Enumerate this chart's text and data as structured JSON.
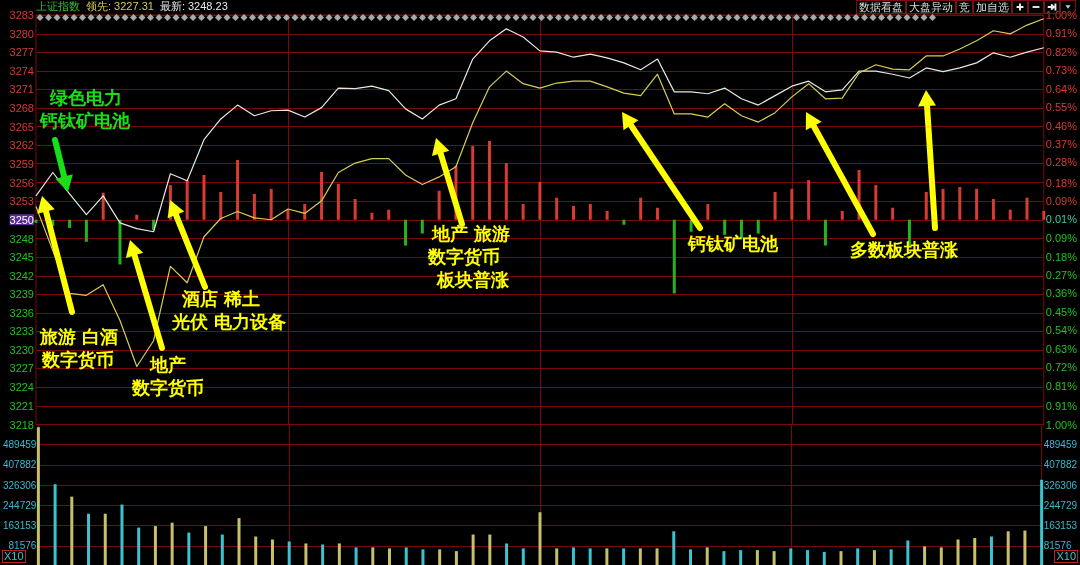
{
  "chart_data": [
    {
      "type": "line",
      "title": "上证指数",
      "categories": [
        null,
        null,
        null,
        null,
        null,
        null,
        null,
        null,
        null,
        null,
        null,
        null,
        null,
        null,
        null,
        null,
        null,
        null,
        null,
        null,
        null,
        null,
        null,
        null,
        null,
        null,
        null,
        null,
        null,
        null,
        null,
        null,
        null,
        null,
        null,
        null,
        null,
        null,
        null,
        null,
        null,
        null,
        null,
        null,
        null,
        null,
        null,
        null,
        null,
        null,
        null,
        null,
        null,
        null,
        null,
        null,
        null,
        null,
        null,
        null,
        null
      ],
      "series": [
        {
          "type": "line",
          "color": "#e6e6e6",
          "values": [
            3254.3,
            3258.0,
            3254.6,
            3251.3,
            3254.3,
            3250.0,
            3249.1,
            3248.6,
            3257.8,
            3256.7,
            3263.2,
            3266.5,
            3268.7,
            3267.0,
            3267.8,
            3267.9,
            3266.8,
            3268.3,
            3271.4,
            3271.3,
            3271.7,
            3271.0,
            3268.1,
            3266.5,
            3268.7,
            3269.7,
            3276.0,
            3278.9,
            3280.8,
            3279.5,
            3277.3,
            3277.1,
            3276.3,
            3276.8,
            3276.2,
            3275.4,
            3274.3,
            3276.0,
            3270.8,
            3270.8,
            3270.5,
            3271.4,
            3269.7,
            3268.7,
            3270.2,
            3271.7,
            3272.5,
            3270.8,
            3271.1,
            3274.1,
            3274.1,
            3273.6,
            3273.0,
            3274.6,
            3274.0,
            3274.6,
            3275.4,
            3277.0,
            3276.3,
            3277.1,
            3277.8
          ]
        },
        {
          "type": "line",
          "color": "#d6cc55",
          "values": [
            3252.6,
            3245.6,
            3238.8,
            3238.5,
            3240.2,
            3234.5,
            3227.2,
            3231.3,
            3243.1,
            3240.5,
            3247.8,
            3250.7,
            3251.8,
            3250.8,
            3250.5,
            3252.2,
            3251.5,
            3253.5,
            3258.0,
            3259.5,
            3260.2,
            3260.2,
            3257.6,
            3256.1,
            3257.3,
            3258.9,
            3265.9,
            3271.6,
            3274.1,
            3272.1,
            3271.4,
            3272.2,
            3272.5,
            3272.5,
            3271.6,
            3270.6,
            3270.2,
            3273.6,
            3267.3,
            3267.3,
            3266.8,
            3268.9,
            3267.0,
            3266.0,
            3267.5,
            3270.0,
            3272.1,
            3269.7,
            3269.8,
            3273.8,
            3275.1,
            3274.4,
            3274.3,
            3276.5,
            3276.5,
            3277.6,
            3278.9,
            3280.5,
            3280.0,
            3281.4,
            3282.4
          ]
        },
        {
          "type": "bar",
          "values": [
            -0.5,
            -1.0,
            -1.3,
            -3.5,
            4.3,
            -7.1,
            0.8,
            -1.6,
            5.5,
            6.3,
            7.1,
            4.4,
            9.5,
            4.1,
            4.9,
            1.6,
            2.5,
            7.6,
            5.7,
            3.3,
            1.1,
            1.6,
            -4.1,
            -2.2,
            4.6,
            8.6,
            11.7,
            12.5,
            9.0,
            2.5,
            6.0,
            3.5,
            2.2,
            2.5,
            1.4,
            -0.8,
            3.5,
            1.9,
            -11.7,
            -1.9,
            2.5,
            -2.4,
            -2.9,
            -2.2,
            4.4,
            4.9,
            6.3,
            -4.1,
            1.4,
            7.9,
            5.5,
            1.9,
            -4.1,
            4.4,
            4.9,
            5.2,
            4.9,
            3.3,
            1.6,
            3.5,
            1.4
          ],
          "base": [
            3250.5,
            3250.5,
            3250.5,
            3250.5,
            3250.5,
            3250.5,
            3250.5,
            3250.5,
            3250.5,
            3250.5,
            3250.5,
            3250.5,
            3250.5,
            3250.5,
            3250.5,
            3250.5,
            3250.5,
            3250.5,
            3250.5,
            3250.5,
            3250.5,
            3250.5,
            3250.5,
            3250.5,
            3250.5,
            3250.5,
            3250.5,
            3250.5,
            3250.5,
            3250.5,
            3250.5,
            3250.5,
            3250.5,
            3250.5,
            3250.5,
            3250.5,
            3250.5,
            3250.5,
            3250.5,
            3250.5,
            3250.5,
            3250.5,
            3250.5,
            3250.5,
            3250.5,
            3250.5,
            3250.5,
            3250.5,
            3250.5,
            3250.5,
            3250.5,
            3250.5,
            3250.5,
            3250.5,
            3250.5,
            3250.5,
            3250.5,
            3250.5,
            3250.5,
            3250.5,
            3250.5
          ],
          "colors": [
            "#22b322",
            "#22b322",
            "#22b322",
            "#22b322",
            "#d83a34",
            "#22b322",
            "#d83a34",
            "#22b322",
            "#d83a34",
            "#d83a34",
            "#d83a34",
            "#d83a34",
            "#d83a34",
            "#d83a34",
            "#d83a34",
            "#d83a34",
            "#d83a34",
            "#d83a34",
            "#d83a34",
            "#d83a34",
            "#d83a34",
            "#d83a34",
            "#22b322",
            "#22b322",
            "#d83a34",
            "#d83a34",
            "#d83a34",
            "#d83a34",
            "#d83a34",
            "#d83a34",
            "#d83a34",
            "#d83a34",
            "#d83a34",
            "#d83a34",
            "#d83a34",
            "#22b322",
            "#d83a34",
            "#d83a34",
            "#22b322",
            "#22b322",
            "#d83a34",
            "#22b322",
            "#22b322",
            "#22b322",
            "#d83a34",
            "#d83a34",
            "#d83a34",
            "#22b322",
            "#d83a34",
            "#d83a34",
            "#d83a34",
            "#d83a34",
            "#22b322",
            "#d83a34",
            "#d83a34",
            "#d83a34",
            "#d83a34",
            "#d83a34",
            "#d83a34",
            "#d83a34",
            "#d83a34"
          ]
        }
      ],
      "ylim": [
        3218,
        3283
      ],
      "yticks": [
        3218,
        {
          "value": 3220.9,
          "label": "3221"
        },
        {
          "value": 3223.9,
          "label": "3224"
        },
        {
          "value": 3226.9,
          "label": "3227"
        },
        {
          "value": 3229.8,
          "label": "3230"
        },
        {
          "value": 3232.8,
          "label": "3233"
        },
        {
          "value": 3235.7,
          "label": "3236"
        },
        {
          "value": 3238.7,
          "label": "3239"
        },
        {
          "value": 3241.6,
          "label": "3242"
        },
        {
          "value": 3244.6,
          "label": "3245"
        },
        {
          "value": 3247.5,
          "label": "3248"
        },
        {
          "value": 3250.5,
          "label": "3250"
        },
        {
          "value": 3253.5,
          "label": "3253"
        },
        {
          "value": 3256.4,
          "label": "3256"
        },
        {
          "value": 3259.4,
          "label": "3259"
        },
        {
          "value": 3262.3,
          "label": "3262"
        },
        {
          "value": 3265.3,
          "label": "3265"
        },
        {
          "value": 3268.2,
          "label": "3268"
        },
        {
          "value": 3271.2,
          "label": "3271"
        },
        {
          "value": 3274.1,
          "label": "3274"
        },
        {
          "value": 3277.1,
          "label": "3277"
        },
        3280,
        3283
      ],
      "y2lim": [
        -1,
        1
      ],
      "y2ticks": [
        {
          "value": -1,
          "label": "1.00%"
        },
        {
          "value": -0.91,
          "label": "0.91%"
        },
        {
          "value": -0.81,
          "label": "0.81%"
        },
        {
          "value": -0.72,
          "label": "0.72%"
        },
        {
          "value": -0.63,
          "label": "0.63%"
        },
        {
          "value": -0.54,
          "label": "0.54%"
        },
        {
          "value": -0.45,
          "label": "0.45%"
        },
        {
          "value": -0.36,
          "label": "0.36%"
        },
        {
          "value": -0.27,
          "label": "0.27%"
        },
        {
          "value": -0.18,
          "label": "0.18%"
        },
        {
          "value": -0.09,
          "label": "0.09%"
        },
        {
          "value": 0.005,
          "label": "0.01%"
        },
        {
          "value": 0.09,
          "label": "0.09%"
        },
        {
          "value": 0.18,
          "label": "0.18%"
        },
        {
          "value": 0.28,
          "label": "0.28%"
        },
        {
          "value": 0.37,
          "label": "0.37%"
        },
        {
          "value": 0.46,
          "label": "0.46%"
        },
        {
          "value": 0.55,
          "label": "0.55%"
        },
        {
          "value": 0.64,
          "label": "0.64%"
        },
        {
          "value": 0.73,
          "label": "0.73%"
        },
        {
          "value": 0.82,
          "label": "0.82%"
        },
        {
          "value": 0.91,
          "label": "0.91%"
        },
        {
          "value": 1,
          "label": "1.00%"
        }
      ],
      "grid": true,
      "annotations": [
        "领先: 3227.31",
        "最新: 3248.23",
        "数据看盘",
        "大盘异动",
        "竞",
        "加自选",
        "绿色电力",
        "钙钛矿电池",
        "旅游 白酒",
        "数字货币",
        "地产",
        "数字货币",
        "酒店 稀土",
        "光伏 电力设备",
        "地产 旅游",
        "数字货币",
        "板块普涨",
        "钙钛矿电池",
        "多数板块普涨"
      ]
    },
    {
      "type": "bar",
      "categories": [
        null,
        null,
        null,
        null,
        null,
        null,
        null,
        null,
        null,
        null,
        null,
        null,
        null,
        null,
        null,
        null,
        null,
        null,
        null,
        null,
        null,
        null,
        null,
        null,
        null,
        null,
        null,
        null,
        null,
        null,
        null,
        null,
        null,
        null,
        null,
        null,
        null,
        null,
        null,
        null,
        null,
        null,
        null,
        null,
        null,
        null,
        null,
        null,
        null,
        null,
        null,
        null,
        null,
        null,
        null,
        null,
        null,
        null,
        null,
        null,
        null
      ],
      "values": [
        560000,
        330000,
        280000,
        211000,
        211000,
        248000,
        155000,
        161000,
        175000,
        135000,
        161000,
        127000,
        193000,
        119000,
        107000,
        99000,
        91000,
        87000,
        91000,
        75000,
        75000,
        71000,
        75000,
        67000,
        67000,
        60000,
        127000,
        127000,
        91000,
        71000,
        217000,
        71000,
        75000,
        71000,
        71000,
        71000,
        71000,
        71000,
        140000,
        67000,
        75000,
        60000,
        64000,
        64000,
        60000,
        71000,
        64000,
        57000,
        60000,
        71000,
        64000,
        67000,
        103000,
        79000,
        75000,
        107000,
        113000,
        119000,
        140000,
        143000,
        348000
      ],
      "colors": [
        "#c8bf6a",
        "#3cc3cf",
        "#c8bf6a",
        "#3cc3cf",
        "#c8bf6a",
        "#3cc3cf",
        "#3cc3cf",
        "#c8bf6a",
        "#c8bf6a",
        "#3cc3cf",
        "#c8bf6a",
        "#3cc3cf",
        "#c8bf6a",
        "#c8bf6a",
        "#c8bf6a",
        "#3cc3cf",
        "#c8bf6a",
        "#3cc3cf",
        "#c8bf6a",
        "#3cc3cf",
        "#c8bf6a",
        "#c8bf6a",
        "#3cc3cf",
        "#3cc3cf",
        "#c8bf6a",
        "#c8bf6a",
        "#c8bf6a",
        "#c8bf6a",
        "#3cc3cf",
        "#3cc3cf",
        "#c8bf6a",
        "#c8bf6a",
        "#3cc3cf",
        "#3cc3cf",
        "#c8bf6a",
        "#3cc3cf",
        "#c8bf6a",
        "#c8bf6a",
        "#3cc3cf",
        "#3cc3cf",
        "#c8bf6a",
        "#3cc3cf",
        "#3cc3cf",
        "#c8bf6a",
        "#c8bf6a",
        "#3cc3cf",
        "#3cc3cf",
        "#3cc3cf",
        "#c8bf6a",
        "#3cc3cf",
        "#c8bf6a",
        "#3cc3cf",
        "#3cc3cf",
        "#c8bf6a",
        "#c8bf6a",
        "#c8bf6a",
        "#c8bf6a",
        "#3cc3cf",
        "#c8bf6a",
        "#c8bf6a",
        "#3cc3cf"
      ],
      "ylim": [
        0,
        571035
      ],
      "yticks": [
        81576,
        163153,
        244729,
        326306,
        407882,
        489459
      ],
      "y2lim": [
        0,
        571035
      ],
      "y2ticks": [
        81576,
        163153,
        244729,
        326306,
        407882,
        489459
      ],
      "grid": true,
      "annotations": [
        "X10",
        "X10"
      ]
    }
  ]
}
